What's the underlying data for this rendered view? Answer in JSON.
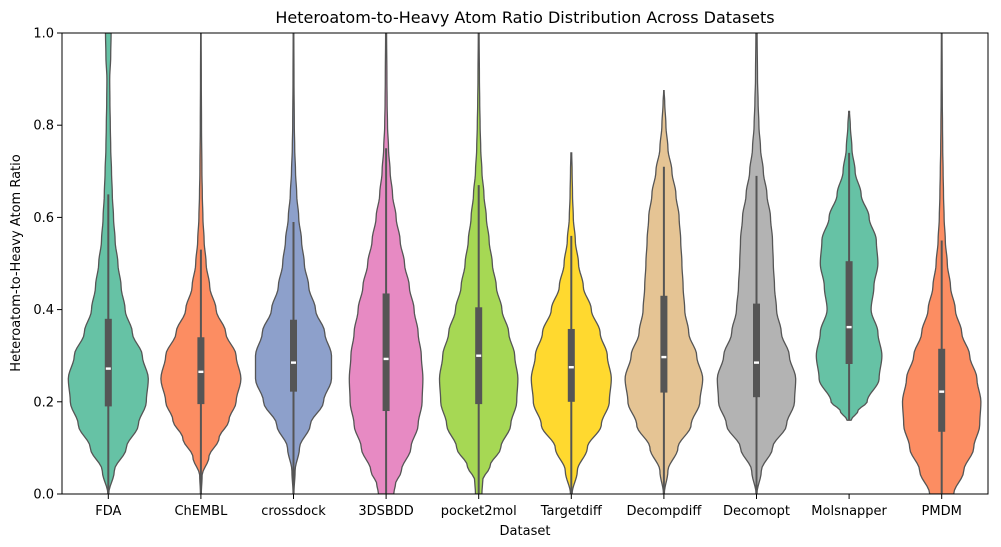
{
  "chart_data": {
    "type": "violin",
    "title": "Heteroatom-to-Heavy Atom Ratio Distribution Across Datasets",
    "xlabel": "Dataset",
    "ylabel": "Heteroatom-to-Heavy Atom Ratio",
    "ylim": [
      0.0,
      1.0
    ],
    "yticks": [
      "0.0",
      "0.2",
      "0.4",
      "0.6",
      "0.8",
      "1.0"
    ],
    "grid": false,
    "colors": {
      "outline": "#555555",
      "box": "#555555",
      "median_marker": "#ffffff"
    },
    "series": [
      {
        "category": "FDA",
        "color": "#66c2a5",
        "min": 0.0,
        "max": 1.0,
        "q1": 0.19,
        "median": 0.272,
        "q3": 0.38,
        "whisker_low": 0.0,
        "whisker_high": 0.65,
        "density": [
          [
            0.0,
            0.01
          ],
          [
            0.05,
            0.15
          ],
          [
            0.1,
            0.45
          ],
          [
            0.15,
            0.75
          ],
          [
            0.2,
            0.95
          ],
          [
            0.25,
            1.0
          ],
          [
            0.3,
            0.85
          ],
          [
            0.35,
            0.6
          ],
          [
            0.4,
            0.42
          ],
          [
            0.45,
            0.32
          ],
          [
            0.5,
            0.24
          ],
          [
            0.55,
            0.17
          ],
          [
            0.6,
            0.13
          ],
          [
            0.65,
            0.1
          ],
          [
            0.7,
            0.08
          ],
          [
            0.75,
            0.06
          ],
          [
            0.8,
            0.05
          ],
          [
            0.85,
            0.04
          ],
          [
            0.9,
            0.035
          ],
          [
            0.95,
            0.06
          ],
          [
            1.0,
            0.07
          ]
        ]
      },
      {
        "category": "ChEMBL",
        "color": "#fc8d62",
        "min": 0.0,
        "max": 1.0,
        "q1": 0.195,
        "median": 0.265,
        "q3": 0.34,
        "whisker_low": 0.0,
        "whisker_high": 0.53,
        "density": [
          [
            0.0,
            0.01
          ],
          [
            0.04,
            0.03
          ],
          [
            0.08,
            0.2
          ],
          [
            0.12,
            0.45
          ],
          [
            0.16,
            0.7
          ],
          [
            0.2,
            0.88
          ],
          [
            0.25,
            1.0
          ],
          [
            0.3,
            0.88
          ],
          [
            0.35,
            0.62
          ],
          [
            0.4,
            0.38
          ],
          [
            0.45,
            0.22
          ],
          [
            0.5,
            0.13
          ],
          [
            0.55,
            0.08
          ],
          [
            0.6,
            0.05
          ],
          [
            0.65,
            0.035
          ],
          [
            0.7,
            0.025
          ],
          [
            0.8,
            0.015
          ],
          [
            0.9,
            0.01
          ],
          [
            1.0,
            0.006
          ]
        ]
      },
      {
        "category": "crossdock",
        "color": "#8da0cb",
        "min": 0.0,
        "max": 1.0,
        "q1": 0.222,
        "median": 0.285,
        "q3": 0.378,
        "whisker_low": 0.0,
        "whisker_high": 0.59,
        "density": [
          [
            0.0,
            0.01
          ],
          [
            0.05,
            0.04
          ],
          [
            0.1,
            0.15
          ],
          [
            0.15,
            0.42
          ],
          [
            0.2,
            0.75
          ],
          [
            0.25,
            0.95
          ],
          [
            0.3,
            0.95
          ],
          [
            0.35,
            0.78
          ],
          [
            0.4,
            0.55
          ],
          [
            0.45,
            0.38
          ],
          [
            0.5,
            0.27
          ],
          [
            0.55,
            0.2
          ],
          [
            0.6,
            0.13
          ],
          [
            0.65,
            0.08
          ],
          [
            0.7,
            0.05
          ],
          [
            0.75,
            0.03
          ],
          [
            0.8,
            0.02
          ],
          [
            0.9,
            0.012
          ],
          [
            1.0,
            0.008
          ]
        ]
      },
      {
        "category": "3DSBDD",
        "color": "#e78ac3",
        "min": 0.0,
        "max": 1.0,
        "q1": 0.18,
        "median": 0.293,
        "q3": 0.435,
        "whisker_low": 0.0,
        "whisker_high": 0.75,
        "density": [
          [
            0.0,
            0.19
          ],
          [
            0.02,
            0.23
          ],
          [
            0.05,
            0.38
          ],
          [
            0.1,
            0.62
          ],
          [
            0.15,
            0.8
          ],
          [
            0.2,
            0.9
          ],
          [
            0.25,
            0.92
          ],
          [
            0.3,
            0.88
          ],
          [
            0.35,
            0.8
          ],
          [
            0.4,
            0.7
          ],
          [
            0.45,
            0.58
          ],
          [
            0.5,
            0.46
          ],
          [
            0.55,
            0.35
          ],
          [
            0.6,
            0.25
          ],
          [
            0.65,
            0.16
          ],
          [
            0.7,
            0.1
          ],
          [
            0.75,
            0.06
          ],
          [
            0.8,
            0.035
          ],
          [
            0.85,
            0.025
          ],
          [
            0.9,
            0.02
          ],
          [
            1.0,
            0.012
          ]
        ]
      },
      {
        "category": "pocket2mol",
        "color": "#a6d854",
        "min": 0.0,
        "max": 1.0,
        "q1": 0.195,
        "median": 0.3,
        "q3": 0.405,
        "whisker_low": 0.0,
        "whisker_high": 0.67,
        "density": [
          [
            0.0,
            0.08
          ],
          [
            0.03,
            0.1
          ],
          [
            0.06,
            0.28
          ],
          [
            0.1,
            0.55
          ],
          [
            0.15,
            0.8
          ],
          [
            0.2,
            0.95
          ],
          [
            0.25,
            0.98
          ],
          [
            0.3,
            0.9
          ],
          [
            0.35,
            0.75
          ],
          [
            0.4,
            0.58
          ],
          [
            0.45,
            0.44
          ],
          [
            0.5,
            0.34
          ],
          [
            0.55,
            0.26
          ],
          [
            0.6,
            0.19
          ],
          [
            0.65,
            0.13
          ],
          [
            0.7,
            0.08
          ],
          [
            0.75,
            0.05
          ],
          [
            0.8,
            0.035
          ],
          [
            0.85,
            0.025
          ],
          [
            0.9,
            0.018
          ],
          [
            1.0,
            0.01
          ]
        ]
      },
      {
        "category": "Targetdiff",
        "color": "#ffd92f",
        "min": 0.0,
        "max": 0.74,
        "q1": 0.2,
        "median": 0.275,
        "q3": 0.358,
        "whisker_low": 0.0,
        "whisker_high": 0.56,
        "density": [
          [
            0.0,
            0.02
          ],
          [
            0.05,
            0.15
          ],
          [
            0.1,
            0.4
          ],
          [
            0.15,
            0.75
          ],
          [
            0.2,
            0.95
          ],
          [
            0.25,
            1.0
          ],
          [
            0.3,
            0.9
          ],
          [
            0.35,
            0.72
          ],
          [
            0.4,
            0.5
          ],
          [
            0.45,
            0.3
          ],
          [
            0.5,
            0.18
          ],
          [
            0.55,
            0.1
          ],
          [
            0.6,
            0.05
          ],
          [
            0.65,
            0.03
          ],
          [
            0.7,
            0.02
          ],
          [
            0.74,
            0.01
          ]
        ]
      },
      {
        "category": "Decompdiff",
        "color": "#e5c494",
        "min": 0.0,
        "max": 0.875,
        "q1": 0.22,
        "median": 0.297,
        "q3": 0.43,
        "whisker_low": 0.0,
        "whisker_high": 0.71,
        "density": [
          [
            0.0,
            0.01
          ],
          [
            0.05,
            0.1
          ],
          [
            0.1,
            0.35
          ],
          [
            0.15,
            0.68
          ],
          [
            0.2,
            0.9
          ],
          [
            0.25,
            0.97
          ],
          [
            0.3,
            0.82
          ],
          [
            0.35,
            0.62
          ],
          [
            0.4,
            0.52
          ],
          [
            0.45,
            0.48
          ],
          [
            0.5,
            0.45
          ],
          [
            0.55,
            0.42
          ],
          [
            0.6,
            0.38
          ],
          [
            0.65,
            0.3
          ],
          [
            0.7,
            0.2
          ],
          [
            0.75,
            0.1
          ],
          [
            0.8,
            0.05
          ],
          [
            0.85,
            0.02
          ],
          [
            0.875,
            0.005
          ]
        ]
      },
      {
        "category": "Decomopt",
        "color": "#b3b3b3",
        "min": 0.0,
        "max": 1.0,
        "q1": 0.21,
        "median": 0.285,
        "q3": 0.413,
        "whisker_low": 0.0,
        "whisker_high": 0.69,
        "density": [
          [
            0.0,
            0.01
          ],
          [
            0.05,
            0.12
          ],
          [
            0.1,
            0.4
          ],
          [
            0.15,
            0.75
          ],
          [
            0.2,
            0.95
          ],
          [
            0.25,
            0.98
          ],
          [
            0.3,
            0.82
          ],
          [
            0.35,
            0.62
          ],
          [
            0.4,
            0.5
          ],
          [
            0.45,
            0.45
          ],
          [
            0.5,
            0.42
          ],
          [
            0.55,
            0.4
          ],
          [
            0.6,
            0.35
          ],
          [
            0.65,
            0.26
          ],
          [
            0.7,
            0.17
          ],
          [
            0.75,
            0.1
          ],
          [
            0.8,
            0.06
          ],
          [
            0.85,
            0.04
          ],
          [
            0.9,
            0.025
          ],
          [
            1.0,
            0.015
          ]
        ]
      },
      {
        "category": "Molsnapper",
        "color": "#66c2a5",
        "min": 0.16,
        "max": 0.83,
        "q1": 0.282,
        "median": 0.362,
        "q3": 0.505,
        "whisker_low": 0.16,
        "whisker_high": 0.74,
        "density": [
          [
            0.16,
            0.05
          ],
          [
            0.18,
            0.22
          ],
          [
            0.2,
            0.45
          ],
          [
            0.25,
            0.75
          ],
          [
            0.3,
            0.82
          ],
          [
            0.35,
            0.72
          ],
          [
            0.4,
            0.55
          ],
          [
            0.45,
            0.62
          ],
          [
            0.5,
            0.72
          ],
          [
            0.55,
            0.68
          ],
          [
            0.6,
            0.5
          ],
          [
            0.65,
            0.3
          ],
          [
            0.7,
            0.15
          ],
          [
            0.75,
            0.07
          ],
          [
            0.8,
            0.03
          ],
          [
            0.83,
            0.01
          ]
        ]
      },
      {
        "category": "PMDM",
        "color": "#fc8d62",
        "min": 0.0,
        "max": 1.0,
        "q1": 0.135,
        "median": 0.222,
        "q3": 0.315,
        "whisker_low": 0.0,
        "whisker_high": 0.55,
        "density": [
          [
            0.0,
            0.3
          ],
          [
            0.05,
            0.55
          ],
          [
            0.1,
            0.8
          ],
          [
            0.15,
            0.95
          ],
          [
            0.2,
            0.98
          ],
          [
            0.25,
            0.88
          ],
          [
            0.3,
            0.7
          ],
          [
            0.35,
            0.5
          ],
          [
            0.4,
            0.34
          ],
          [
            0.45,
            0.22
          ],
          [
            0.5,
            0.14
          ],
          [
            0.55,
            0.09
          ],
          [
            0.6,
            0.06
          ],
          [
            0.65,
            0.045
          ],
          [
            0.7,
            0.035
          ],
          [
            0.75,
            0.025
          ],
          [
            0.8,
            0.02
          ],
          [
            0.85,
            0.015
          ],
          [
            0.9,
            0.012
          ],
          [
            1.0,
            0.008
          ]
        ]
      }
    ]
  }
}
